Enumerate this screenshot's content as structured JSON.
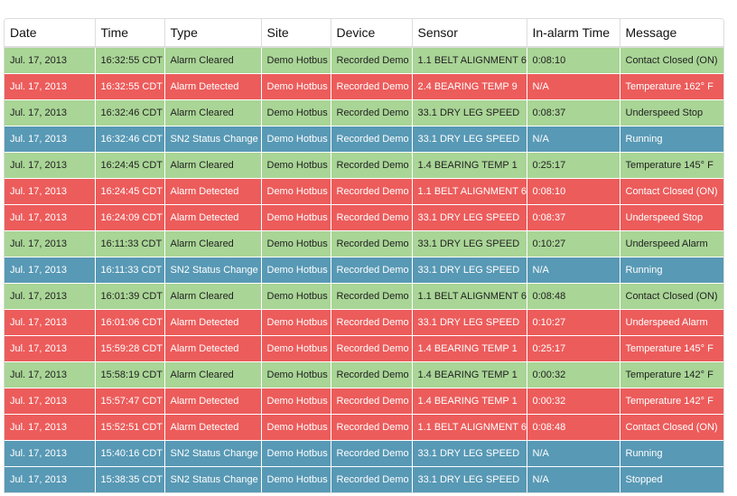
{
  "columns": [
    "Date",
    "Time",
    "Type",
    "Site",
    "Device",
    "Sensor",
    "In-alarm Time",
    "Message"
  ],
  "rows": [
    {
      "date": "Jul. 17, 2013",
      "time": "16:32:55 CDT",
      "type": "Alarm Cleared",
      "site": "Demo Hotbus",
      "device": "Recorded Demo",
      "sensor": "1.1 BELT ALIGNMENT 6",
      "inalarm": "0:08:10",
      "message": "Contact Closed (ON)",
      "status": "cleared"
    },
    {
      "date": "Jul. 17, 2013",
      "time": "16:32:55 CDT",
      "type": "Alarm Detected",
      "site": "Demo Hotbus",
      "device": "Recorded Demo",
      "sensor": "2.4 BEARING TEMP 9",
      "inalarm": "N/A",
      "message": "Temperature 162° F",
      "status": "detected"
    },
    {
      "date": "Jul. 17, 2013",
      "time": "16:32:46 CDT",
      "type": "Alarm Cleared",
      "site": "Demo Hotbus",
      "device": "Recorded Demo",
      "sensor": "33.1 DRY LEG SPEED",
      "inalarm": "0:08:37",
      "message": "Underspeed Stop",
      "status": "cleared"
    },
    {
      "date": "Jul. 17, 2013",
      "time": "16:32:46 CDT",
      "type": "SN2 Status Change",
      "site": "Demo Hotbus",
      "device": "Recorded Demo",
      "sensor": "33.1 DRY LEG SPEED",
      "inalarm": "N/A",
      "message": "Running",
      "status": "status"
    },
    {
      "date": "Jul. 17, 2013",
      "time": "16:24:45 CDT",
      "type": "Alarm Cleared",
      "site": "Demo Hotbus",
      "device": "Recorded Demo",
      "sensor": "1.4 BEARING TEMP 1",
      "inalarm": "0:25:17",
      "message": "Temperature 145° F",
      "status": "cleared"
    },
    {
      "date": "Jul. 17, 2013",
      "time": "16:24:45 CDT",
      "type": "Alarm Detected",
      "site": "Demo Hotbus",
      "device": "Recorded Demo",
      "sensor": "1.1 BELT ALIGNMENT 6",
      "inalarm": "0:08:10",
      "message": "Contact Closed (ON)",
      "status": "detected"
    },
    {
      "date": "Jul. 17, 2013",
      "time": "16:24:09 CDT",
      "type": "Alarm Detected",
      "site": "Demo Hotbus",
      "device": "Recorded Demo",
      "sensor": "33.1 DRY LEG SPEED",
      "inalarm": "0:08:37",
      "message": "Underspeed Stop",
      "status": "detected"
    },
    {
      "date": "Jul. 17, 2013",
      "time": "16:11:33 CDT",
      "type": "Alarm Cleared",
      "site": "Demo Hotbus",
      "device": "Recorded Demo",
      "sensor": "33.1 DRY LEG SPEED",
      "inalarm": "0:10:27",
      "message": "Underspeed Alarm",
      "status": "cleared"
    },
    {
      "date": "Jul. 17, 2013",
      "time": "16:11:33 CDT",
      "type": "SN2 Status Change",
      "site": "Demo Hotbus",
      "device": "Recorded Demo",
      "sensor": "33.1 DRY LEG SPEED",
      "inalarm": "N/A",
      "message": "Running",
      "status": "status"
    },
    {
      "date": "Jul. 17, 2013",
      "time": "16:01:39 CDT",
      "type": "Alarm Cleared",
      "site": "Demo Hotbus",
      "device": "Recorded Demo",
      "sensor": "1.1 BELT ALIGNMENT 6",
      "inalarm": "0:08:48",
      "message": "Contact Closed (ON)",
      "status": "cleared"
    },
    {
      "date": "Jul. 17, 2013",
      "time": "16:01:06 CDT",
      "type": "Alarm Detected",
      "site": "Demo Hotbus",
      "device": "Recorded Demo",
      "sensor": "33.1 DRY LEG SPEED",
      "inalarm": "0:10:27",
      "message": "Underspeed Alarm",
      "status": "detected"
    },
    {
      "date": "Jul. 17, 2013",
      "time": "15:59:28 CDT",
      "type": "Alarm Detected",
      "site": "Demo Hotbus",
      "device": "Recorded Demo",
      "sensor": "1.4 BEARING TEMP 1",
      "inalarm": "0:25:17",
      "message": "Temperature 145° F",
      "status": "detected"
    },
    {
      "date": "Jul. 17, 2013",
      "time": "15:58:19 CDT",
      "type": "Alarm Cleared",
      "site": "Demo Hotbus",
      "device": "Recorded Demo",
      "sensor": "1.4 BEARING TEMP 1",
      "inalarm": "0:00:32",
      "message": "Temperature 142° F",
      "status": "cleared"
    },
    {
      "date": "Jul. 17, 2013",
      "time": "15:57:47 CDT",
      "type": "Alarm Detected",
      "site": "Demo Hotbus",
      "device": "Recorded Demo",
      "sensor": "1.4 BEARING TEMP 1",
      "inalarm": "0:00:32",
      "message": "Temperature 142° F",
      "status": "detected"
    },
    {
      "date": "Jul. 17, 2013",
      "time": "15:52:51 CDT",
      "type": "Alarm Detected",
      "site": "Demo Hotbus",
      "device": "Recorded Demo",
      "sensor": "1.1 BELT ALIGNMENT 6",
      "inalarm": "0:08:48",
      "message": "Contact Closed (ON)",
      "status": "detected"
    },
    {
      "date": "Jul. 17, 2013",
      "time": "15:40:16 CDT",
      "type": "SN2 Status Change",
      "site": "Demo Hotbus",
      "device": "Recorded Demo",
      "sensor": "33.1 DRY LEG SPEED",
      "inalarm": "N/A",
      "message": "Running",
      "status": "status"
    },
    {
      "date": "Jul. 17, 2013",
      "time": "15:38:35 CDT",
      "type": "SN2 Status Change",
      "site": "Demo Hotbus",
      "device": "Recorded Demo",
      "sensor": "33.1 DRY LEG SPEED",
      "inalarm": "N/A",
      "message": "Stopped",
      "status": "status"
    }
  ],
  "colors": {
    "cleared": "#a9d596",
    "detected": "#ec5c5b",
    "status": "#5899b5"
  }
}
